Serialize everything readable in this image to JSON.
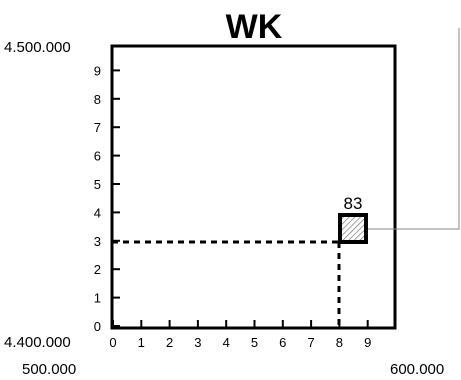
{
  "title": "WK",
  "y_axis": {
    "top_label": "4.500.000",
    "bottom_label": "4.400.000",
    "ticks": [
      "0",
      "1",
      "2",
      "3",
      "4",
      "5",
      "6",
      "7",
      "8",
      "9"
    ]
  },
  "x_axis": {
    "left_label": "500.000",
    "right_label": "600.000",
    "ticks": [
      "0",
      "1",
      "2",
      "3",
      "4",
      "5",
      "6",
      "7",
      "8",
      "9"
    ]
  },
  "grid_cell": {
    "label": "83",
    "x_digit": 8,
    "y_digit": 3
  }
}
